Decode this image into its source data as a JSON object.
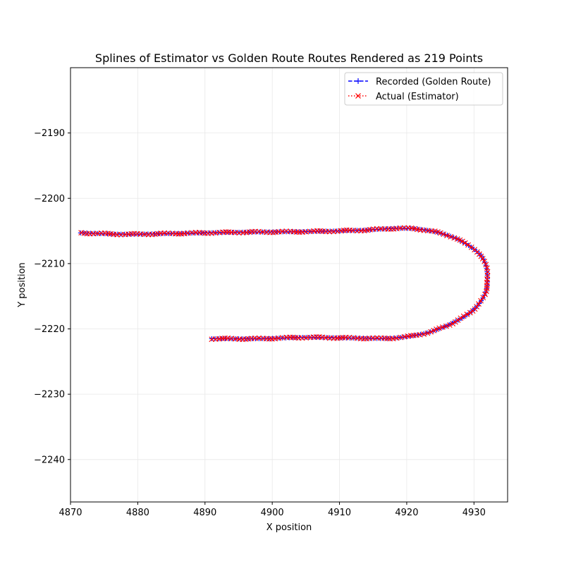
{
  "chart_data": {
    "type": "line",
    "title": "Splines of Estimator vs Golden Route Routes Rendered as 219 Points",
    "xlabel": "X position",
    "ylabel": "Y position",
    "xlim": [
      4870,
      4935
    ],
    "ylim": [
      -2246.5,
      -2180
    ],
    "xticks": [
      4870,
      4880,
      4890,
      4900,
      4910,
      4920,
      4930
    ],
    "yticks": [
      -2190,
      -2200,
      -2210,
      -2220,
      -2230,
      -2240
    ],
    "grid": true,
    "legend_position": "top-right",
    "colors": {
      "recorded": "#0000ff",
      "actual": "#ff0000"
    },
    "anchors": [
      [
        4891.0,
        -2221.5
      ],
      [
        4898.0,
        -2221.5
      ],
      [
        4905.0,
        -2221.3
      ],
      [
        4912.0,
        -2221.4
      ],
      [
        4918.0,
        -2221.4
      ],
      [
        4923.0,
        -2220.6
      ],
      [
        4927.0,
        -2219.0
      ],
      [
        4930.0,
        -2217.0
      ],
      [
        4931.7,
        -2214.5
      ],
      [
        4932.0,
        -2212.0
      ],
      [
        4931.5,
        -2209.5
      ],
      [
        4930.0,
        -2207.8
      ],
      [
        4927.0,
        -2206.0
      ],
      [
        4923.0,
        -2204.9
      ],
      [
        4919.0,
        -2204.6
      ],
      [
        4913.0,
        -2204.9
      ],
      [
        4905.0,
        -2205.1
      ],
      [
        4895.0,
        -2205.2
      ],
      [
        4885.0,
        -2205.4
      ],
      [
        4878.0,
        -2205.5
      ],
      [
        4871.5,
        -2205.3
      ]
    ],
    "series": [
      {
        "name": "Recorded (Golden Route)",
        "marker": "+",
        "linestyle": "dashed",
        "color": "#0000ff",
        "num_points": 219
      },
      {
        "name": "Actual (Estimator)",
        "marker": "x",
        "linestyle": "dotted",
        "color": "#ff0000",
        "num_points": 219
      }
    ]
  }
}
